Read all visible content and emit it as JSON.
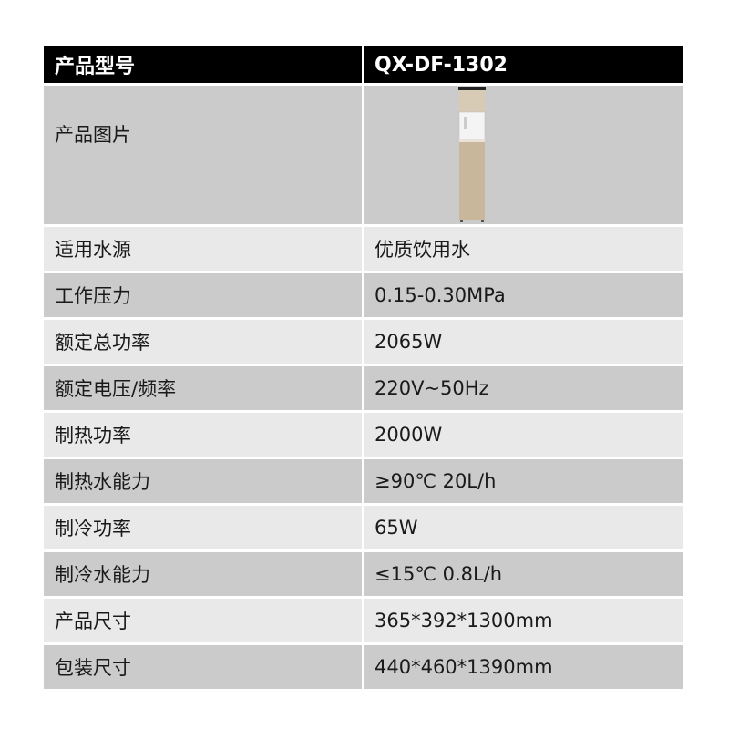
{
  "header": {
    "label": "产品型号",
    "value": "QX-DF-1302"
  },
  "image_row": {
    "label": "产品图片",
    "image": "water-dispenser-product-photo",
    "colors": {
      "body": "#c9b79c",
      "panel": "#f4f4f4",
      "top": "#222222"
    }
  },
  "rows": [
    {
      "label": "适用水源",
      "value": "优质饮用水"
    },
    {
      "label": "工作压力",
      "value": "0.15-0.30MPa"
    },
    {
      "label": "额定总功率",
      "value": "2065W"
    },
    {
      "label": "额定电压/频率",
      "value": "220V~50Hz"
    },
    {
      "label": "制热功率",
      "value": "2000W"
    },
    {
      "label": "制热水能力",
      "value": "≥90℃ 20L/h"
    },
    {
      "label": "制冷功率",
      "value": "65W"
    },
    {
      "label": "制冷水能力",
      "value": "≤15℃ 0.8L/h"
    },
    {
      "label": "产品尺寸",
      "value": "365*392*1300mm"
    },
    {
      "label": "包装尺寸",
      "value": "440*460*1390mm"
    }
  ],
  "colors": {
    "header_bg": "#000000",
    "row_dark": "#cbcbcb",
    "row_light": "#e9e9e9"
  }
}
